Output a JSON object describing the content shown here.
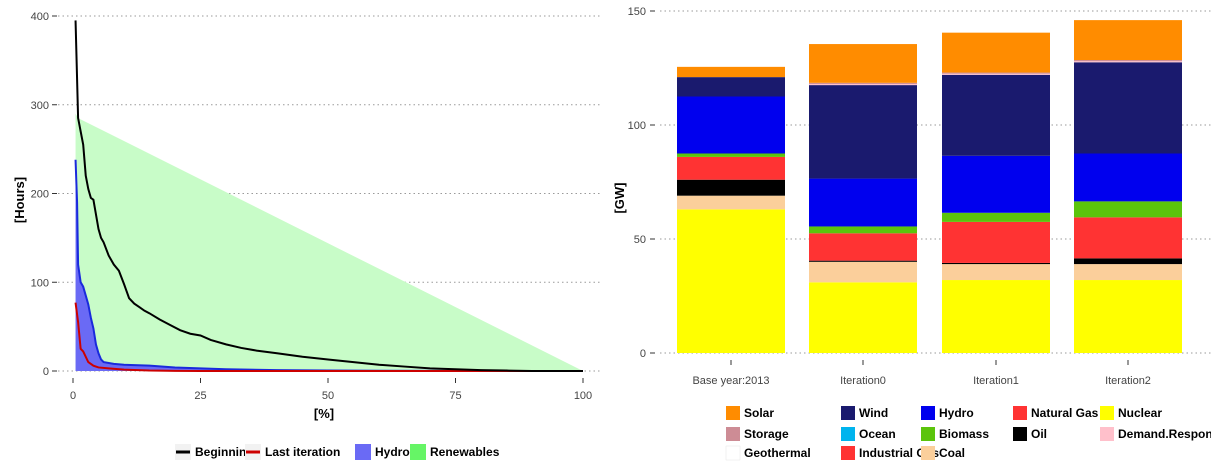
{
  "chart_data": [
    {
      "type": "area",
      "xlabel": "[%]",
      "ylabel": "[Hours]",
      "xlim": [
        0,
        100
      ],
      "ylim": [
        0,
        400
      ],
      "x_ticks": [
        "0",
        "25",
        "50",
        "75",
        "100"
      ],
      "y_ticks": [
        "0",
        "100",
        "200",
        "300",
        "400"
      ],
      "grid": "horizontal dotted",
      "legend_position": "bottom",
      "series": [
        {
          "name": "Beginning",
          "kind": "line",
          "color": "#000000",
          "x": [
            0.5,
            1,
            1.5,
            2,
            2.5,
            3,
            3.5,
            4,
            5,
            5.5,
            6,
            7,
            8,
            9,
            10,
            11,
            12,
            13,
            14,
            15,
            17,
            19,
            21,
            23,
            25,
            27,
            30,
            33,
            36,
            40,
            45,
            50,
            55,
            60,
            65,
            70,
            75,
            80,
            85,
            90,
            95,
            100
          ],
          "y": [
            395,
            285,
            270,
            255,
            220,
            205,
            195,
            193,
            160,
            150,
            145,
            130,
            120,
            113,
            98,
            82,
            76,
            72,
            68,
            65,
            58,
            52,
            46,
            42,
            40,
            35,
            30,
            26,
            23,
            20,
            16,
            13,
            10,
            7,
            5,
            3,
            2,
            1,
            0.5,
            0,
            0,
            0
          ]
        },
        {
          "name": "Last iteration",
          "kind": "line",
          "color": "#cc0000",
          "x": [
            0.5,
            1,
            1.5,
            2,
            3,
            4,
            5,
            7,
            10,
            15,
            20,
            25,
            30,
            100
          ],
          "y": [
            77,
            55,
            25,
            22,
            10,
            6,
            4,
            3,
            1.5,
            0.5,
            0.2,
            0,
            0,
            0
          ]
        },
        {
          "name": "Hydro",
          "kind": "area",
          "color": "#6a6af5",
          "edge_color": "#1a2adc",
          "x": [
            0.5,
            0.8,
            1,
            1.5,
            2,
            2.5,
            3,
            3.5,
            4,
            4.5,
            5,
            5.5,
            6,
            8,
            10,
            15,
            20,
            25,
            30,
            40,
            50,
            60,
            70,
            75,
            80,
            100
          ],
          "y": [
            238,
            190,
            120,
            100,
            95,
            85,
            75,
            60,
            48,
            30,
            20,
            13,
            10,
            8,
            7,
            6,
            4,
            3,
            2,
            1,
            0.5,
            0.3,
            0.2,
            0.1,
            0,
            0
          ]
        },
        {
          "name": "Renewables",
          "kind": "area",
          "color": "#c8fcc8",
          "x": [
            0.5,
            1,
            100
          ],
          "y": [
            290,
            285,
            0
          ]
        }
      ]
    },
    {
      "type": "bar",
      "stacked": true,
      "ylabel": "[GW]",
      "ylim": [
        0,
        150
      ],
      "y_ticks": [
        "0",
        "50",
        "100",
        "150"
      ],
      "categories": [
        "Base year:2013",
        "Iteration0",
        "Iteration1",
        "Iteration2"
      ],
      "grid": "horizontal dotted",
      "legend_position": "bottom",
      "series": [
        {
          "name": "Nuclear",
          "color": "#ffff00",
          "values": [
            63,
            31,
            32,
            32
          ]
        },
        {
          "name": "Coal",
          "color": "#fbcf9b",
          "values": [
            6,
            9,
            7,
            7
          ]
        },
        {
          "name": "Oil",
          "color": "#000000",
          "values": [
            7,
            0.5,
            0.5,
            2.5
          ]
        },
        {
          "name": "Industrial Gas",
          "color": "#ff3333",
          "values": [
            0,
            0,
            0,
            0
          ]
        },
        {
          "name": "Natural Gas",
          "color": "#ff3333",
          "values": [
            10,
            12,
            18,
            18
          ]
        },
        {
          "name": "Biomass",
          "color": "#5bc40c",
          "values": [
            1.5,
            3,
            4,
            7
          ]
        },
        {
          "name": "Geothermal",
          "color": "#ffffff",
          "values": [
            0,
            0,
            0,
            0
          ]
        },
        {
          "name": "Hydro",
          "color": "#0000ee",
          "values": [
            25,
            21,
            25,
            21
          ]
        },
        {
          "name": "Ocean",
          "color": "#00b4ee",
          "values": [
            0,
            0,
            0,
            0
          ]
        },
        {
          "name": "Wind",
          "color": "#1a1a6e",
          "values": [
            8.5,
            41,
            35.5,
            40
          ]
        },
        {
          "name": "Demand.Response",
          "color": "#ffc0cb",
          "values": [
            0,
            0.5,
            0.5,
            0.5
          ]
        },
        {
          "name": "Storage",
          "color": "#cd8c95",
          "values": [
            0,
            0.5,
            0.5,
            0.5
          ]
        },
        {
          "name": "Solar",
          "color": "#ff8c00",
          "values": [
            4.5,
            17,
            17.5,
            17.5
          ]
        }
      ]
    }
  ],
  "left_legend": [
    {
      "label": "Beginning",
      "kind": "line",
      "color": "#000000"
    },
    {
      "label": "Last iteration",
      "kind": "line",
      "color": "#cc0000"
    },
    {
      "label": "Hydro",
      "kind": "box",
      "color": "#6a6af5"
    },
    {
      "label": "Renewables",
      "kind": "box",
      "color": "#66f566"
    }
  ],
  "right_legend": [
    {
      "label": "Solar",
      "color": "#ff8c00"
    },
    {
      "label": "Wind",
      "color": "#1a1a6e"
    },
    {
      "label": "Hydro",
      "color": "#0000ee"
    },
    {
      "label": "Natural Gas",
      "color": "#ff3333"
    },
    {
      "label": "Nuclear",
      "color": "#ffff00"
    },
    {
      "label": "Storage",
      "color": "#cd8c95"
    },
    {
      "label": "Ocean",
      "color": "#00b4ee"
    },
    {
      "label": "Biomass",
      "color": "#5bc40c"
    },
    {
      "label": "Oil",
      "color": "#000000"
    },
    {
      "label": "Demand.Response",
      "color": "#ffc0cb"
    },
    {
      "label": "Geothermal",
      "color": "#ffffff"
    },
    {
      "label": "Industrial Gas",
      "color": "#ff3333"
    },
    {
      "label": "Coal",
      "color": "#fbcf9b"
    }
  ]
}
